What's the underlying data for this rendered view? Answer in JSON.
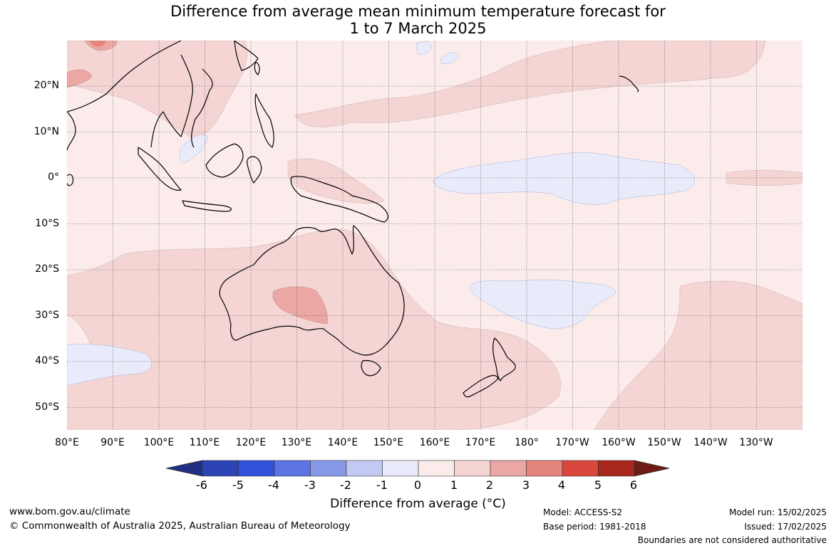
{
  "title": {
    "line1": "Difference from average mean minimum temperature forecast for",
    "line2": "1 to 7 March 2025"
  },
  "map": {
    "latitude_labels": [
      "20°N",
      "10°N",
      "0°",
      "10°S",
      "20°S",
      "30°S",
      "40°S",
      "50°S"
    ],
    "longitude_labels": [
      "80°E",
      "90°E",
      "100°E",
      "110°E",
      "120°E",
      "130°E",
      "140°E",
      "150°E",
      "160°E",
      "170°E",
      "180°",
      "170°W",
      "160°W",
      "150°W",
      "140°W",
      "130°W"
    ]
  },
  "colorbar": {
    "tick_labels": [
      "-6",
      "-5",
      "-4",
      "-3",
      "-2",
      "-1",
      "0",
      "1",
      "2",
      "3",
      "4",
      "5",
      "6"
    ],
    "colors": [
      "#1f2f82",
      "#2b43b3",
      "#3150dc",
      "#5b74e2",
      "#8798e8",
      "#c2c9f3",
      "#e9ebfb",
      "#fbeceb",
      "#f4d5d4",
      "#eaa7a3",
      "#e4857d",
      "#d9473c",
      "#a7271f",
      "#6e1b15"
    ],
    "title": "Difference from average (°C)"
  },
  "footer": {
    "website": "www.bom.gov.au/climate",
    "copyright": "© Commonwealth of Australia 2025, Australian Bureau of Meteorology",
    "model": "Model: ACCESS-S2",
    "base_period": "Base period: 1981-2018",
    "model_run": "Model run: 15/02/2025",
    "issued": "Issued: 17/02/2025",
    "disclaimer": "Boundaries are not considered authoritative"
  }
}
